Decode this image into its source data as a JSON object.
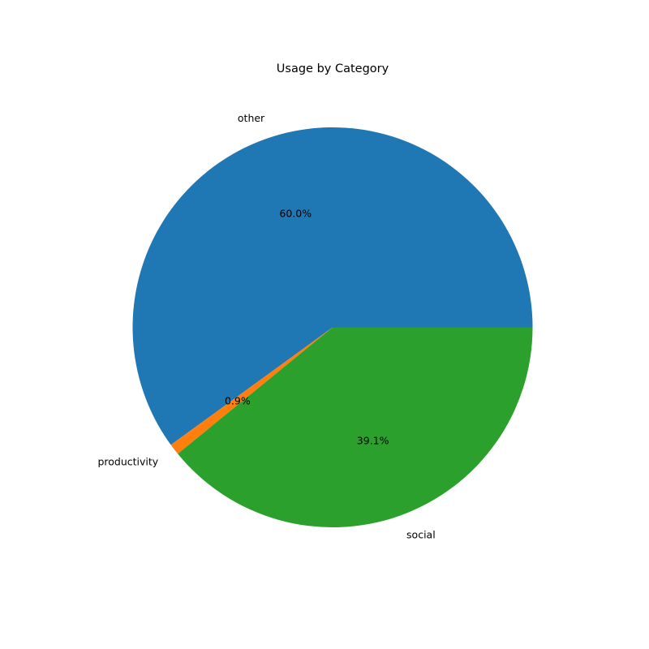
{
  "chart_data": {
    "type": "pie",
    "title": "Usage by Category",
    "categories": [
      "other",
      "productivity",
      "social"
    ],
    "values": [
      60.0,
      0.9,
      39.1
    ],
    "value_labels": [
      "60.0%",
      "0.9%",
      "39.1%"
    ],
    "colors": [
      "#1f77b4",
      "#ff7f0e",
      "#2ca02c"
    ],
    "start_angle_deg": 0,
    "direction": "counterclockwise",
    "legend": "none"
  }
}
